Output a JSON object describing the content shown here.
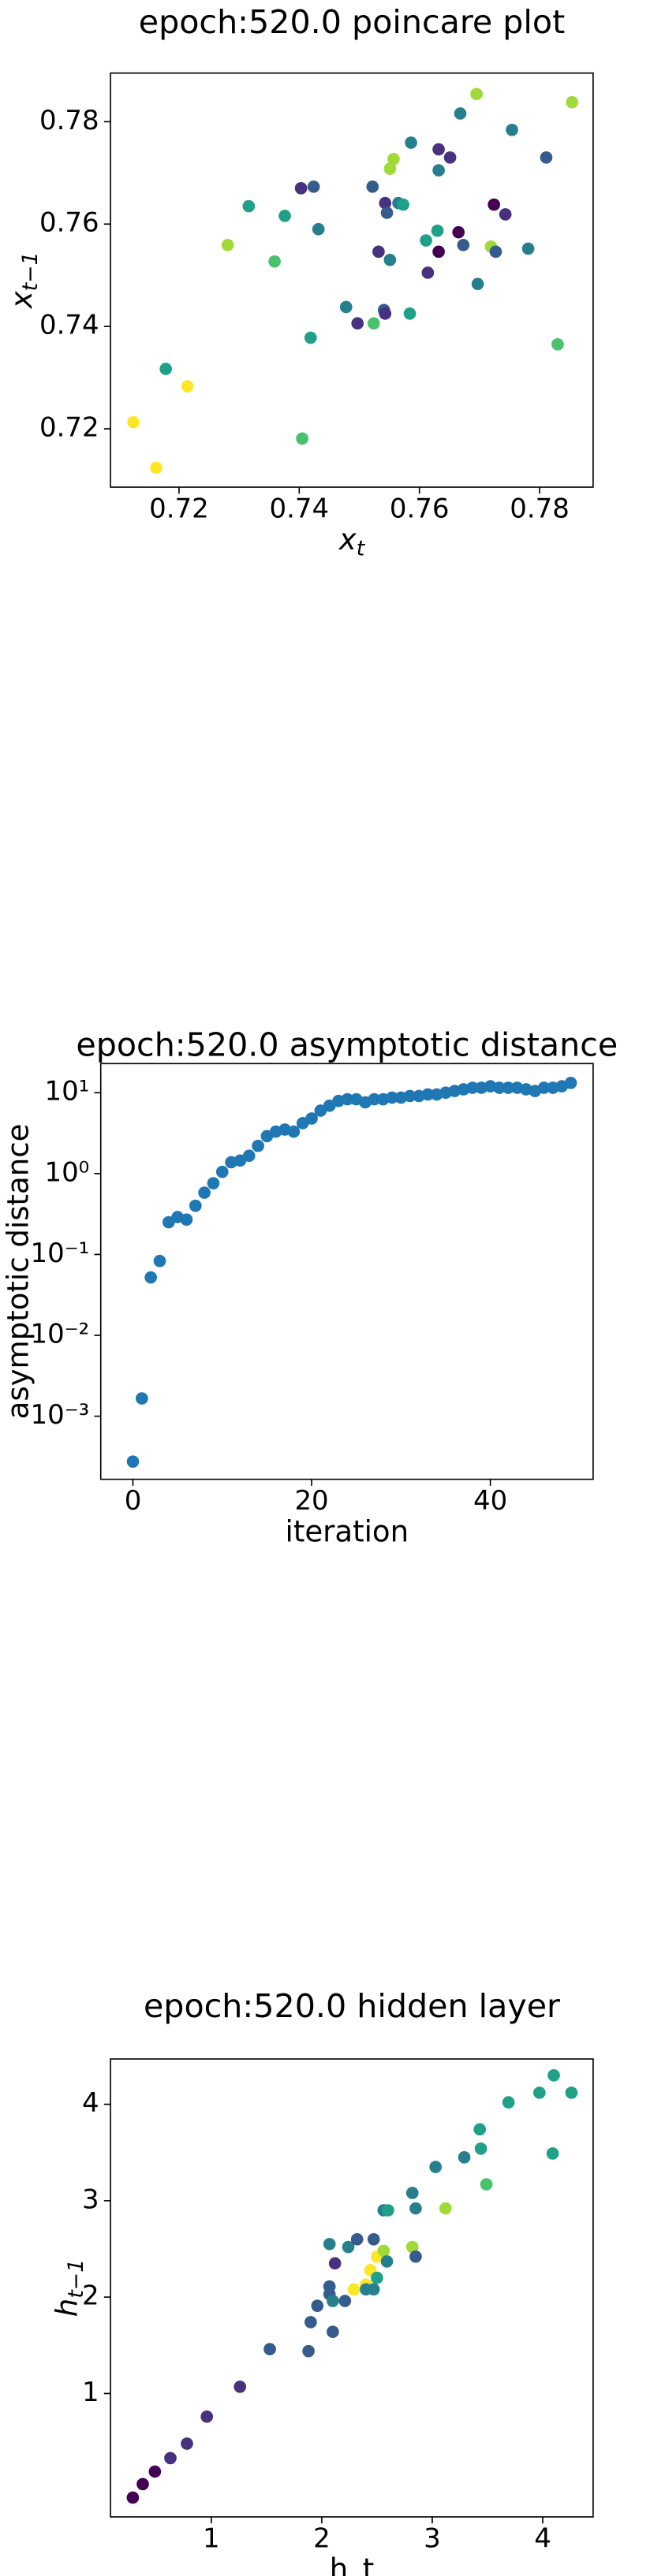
{
  "chart_data": [
    {
      "type": "scatter",
      "title": "epoch:520.0 poincare plot",
      "xlabel": "x",
      "xlabel_sub": "t",
      "ylabel": "x",
      "ylabel_sub": "t−1",
      "xlim": [
        0.7086,
        0.7889
      ],
      "ylim": [
        0.7086,
        0.7895
      ],
      "xticks": [
        0.72,
        0.74,
        0.76,
        0.78
      ],
      "yticks": [
        0.72,
        0.74,
        0.76,
        0.78
      ],
      "x": [
        0.7695,
        0.7854,
        0.7668,
        0.7754,
        0.7811,
        0.7586,
        0.7557,
        0.7551,
        0.7632,
        0.7651,
        0.7632,
        0.7403,
        0.7424,
        0.7522,
        0.7543,
        0.7565,
        0.7573,
        0.7724,
        0.7743,
        0.7316,
        0.7376,
        0.7432,
        0.7546,
        0.763,
        0.7665,
        0.7673,
        0.7611,
        0.7281,
        0.7532,
        0.7551,
        0.7632,
        0.7719,
        0.7727,
        0.7781,
        0.7359,
        0.7614,
        0.7697,
        0.7478,
        0.7541,
        0.7543,
        0.7584,
        0.7497,
        0.7524,
        0.7419,
        0.7178,
        0.7214,
        0.783,
        0.7124,
        0.7405,
        0.7162
      ],
      "series": [
        {
          "values": [
            0.7854,
            0.7838,
            0.7816,
            0.7784,
            0.773,
            0.7759,
            0.7727,
            0.7708,
            0.7746,
            0.773,
            0.7705,
            0.767,
            0.7673,
            0.7673,
            0.7641,
            0.7641,
            0.7638,
            0.7638,
            0.7619,
            0.7635,
            0.7616,
            0.759,
            0.7622,
            0.7587,
            0.7584,
            0.7559,
            0.7568,
            0.7559,
            0.7546,
            0.753,
            0.7546,
            0.7556,
            0.7546,
            0.7552,
            0.7527,
            0.7505,
            0.7483,
            0.7438,
            0.7432,
            0.7425,
            0.7425,
            0.7406,
            0.7406,
            0.7378,
            0.7317,
            0.7283,
            0.7365,
            0.7213,
            0.7181,
            0.7124
          ],
          "colors": [
            "#a0da39",
            "#a0da39",
            "#277f8e",
            "#277f8e",
            "#365c8d",
            "#277f8e",
            "#a0da39",
            "#a0da39",
            "#46327e",
            "#46327e",
            "#277f8e",
            "#46327e",
            "#365c8d",
            "#365c8d",
            "#46327e",
            "#277f8e",
            "#1fa187",
            "#440154",
            "#46327e",
            "#1fa187",
            "#1fa187",
            "#277f8e",
            "#365c8d",
            "#1fa187",
            "#440154",
            "#365c8d",
            "#1fa187",
            "#a0da39",
            "#46327e",
            "#277f8e",
            "#440154",
            "#a0da39",
            "#365c8d",
            "#277f8e",
            "#4ac16d",
            "#46327e",
            "#277f8e",
            "#277f8e",
            "#365c8d",
            "#46327e",
            "#1fa187",
            "#46327e",
            "#4ac16d",
            "#1fa187",
            "#1fa187",
            "#fde725",
            "#4ac16d",
            "#fde725",
            "#4ac16d",
            "#fde725"
          ]
        }
      ]
    },
    {
      "type": "scatter",
      "title": "epoch:520.0 asymptotic distance",
      "xlabel": "iteration",
      "ylabel": "asymptotic distance",
      "yscale": "log",
      "color": "#1f77b4",
      "xlim": [
        -3.6,
        51.5
      ],
      "ylim": [
        0.000166,
        22.9
      ],
      "xticks": [
        0,
        20,
        40
      ],
      "yticks": [
        {
          "value": 0.001,
          "label": "10⁻³"
        },
        {
          "value": 0.01,
          "label": "10⁻²"
        },
        {
          "value": 0.1,
          "label": "10⁻¹"
        },
        {
          "value": 1,
          "label": "10⁰"
        },
        {
          "value": 10,
          "label": "10¹"
        }
      ],
      "x": [
        0,
        1,
        2,
        3,
        4,
        5,
        6,
        7,
        8,
        9,
        10,
        11,
        12,
        13,
        14,
        15,
        16,
        17,
        18,
        19,
        20,
        21,
        22,
        23,
        24,
        25,
        26,
        27,
        28,
        29,
        30,
        31,
        32,
        33,
        34,
        35,
        36,
        37,
        38,
        39,
        40,
        41,
        42,
        43,
        44,
        45,
        46,
        47,
        48,
        49
      ],
      "series": [
        {
          "values": [
            0.000275,
            0.00166,
            0.052,
            0.083,
            0.25,
            0.29,
            0.27,
            0.4,
            0.58,
            0.76,
            1.05,
            1.38,
            1.45,
            1.66,
            2.2,
            2.9,
            3.3,
            3.5,
            3.3,
            4.2,
            4.8,
            6.0,
            6.9,
            7.9,
            8.3,
            8.3,
            7.6,
            8.3,
            8.3,
            8.7,
            8.7,
            9.1,
            9.1,
            9.5,
            9.5,
            10,
            10.5,
            11,
            11.5,
            11.5,
            12,
            11.5,
            11.5,
            11.5,
            11,
            10.5,
            11.5,
            11.5,
            12,
            13.2
          ]
        }
      ]
    },
    {
      "type": "scatter",
      "title": "epoch:520.0 hidden layer",
      "xlabel": "h_t",
      "ylabel": "h",
      "ylabel_sub": "t−1",
      "xlim": [
        0.088,
        4.456
      ],
      "ylim": [
        -0.28,
        4.47
      ],
      "xticks": [
        1,
        2,
        3,
        4
      ],
      "yticks": [
        1,
        2,
        3,
        4
      ],
      "x": [
        0.29,
        0.38,
        0.49,
        0.63,
        0.78,
        0.96,
        1.26,
        1.53,
        1.88,
        1.9,
        1.96,
        2.07,
        2.07,
        2.1,
        2.1,
        2.07,
        2.24,
        2.21,
        2.12,
        2.32,
        2.47,
        2.4,
        2.29,
        2.44,
        2.5,
        2.56,
        2.5,
        2.59,
        2.47,
        2.4,
        2.56,
        2.6,
        2.82,
        2.85,
        2.85,
        2.82,
        3.03,
        3.12,
        3.29,
        3.43,
        3.44,
        3.49,
        3.69,
        3.97,
        4.1,
        4.09,
        4.26
      ],
      "series": [
        {
          "values": [
            -0.08,
            0.06,
            0.19,
            0.33,
            0.48,
            0.76,
            1.07,
            1.46,
            1.44,
            1.74,
            1.91,
            2.03,
            2.11,
            1.96,
            1.64,
            2.55,
            2.52,
            1.96,
            2.35,
            2.6,
            2.6,
            2.13,
            2.08,
            2.28,
            2.42,
            2.48,
            2.2,
            2.37,
            2.08,
            2.08,
            2.9,
            2.9,
            2.52,
            2.42,
            2.92,
            3.08,
            3.35,
            2.92,
            3.45,
            3.74,
            3.54,
            3.17,
            4.02,
            4.12,
            4.3,
            3.49,
            4.12
          ],
          "colors": [
            "#440154",
            "#440154",
            "#440154",
            "#46327e",
            "#46327e",
            "#46327e",
            "#46327e",
            "#365c8d",
            "#365c8d",
            "#365c8d",
            "#365c8d",
            "#365c8d",
            "#365c8d",
            "#277f8e",
            "#365c8d",
            "#277f8e",
            "#277f8e",
            "#365c8d",
            "#46327e",
            "#365c8d",
            "#365c8d",
            "#fde725",
            "#fde725",
            "#fde725",
            "#fde725",
            "#a0da39",
            "#1fa187",
            "#277f8e",
            "#277f8e",
            "#277f8e",
            "#277f8e",
            "#1fa187",
            "#a0da39",
            "#365c8d",
            "#277f8e",
            "#277f8e",
            "#277f8e",
            "#a0da39",
            "#277f8e",
            "#1fa187",
            "#1fa187",
            "#4ac16d",
            "#1fa187",
            "#1fa187",
            "#1fa187",
            "#1fa187",
            "#1fa187"
          ]
        }
      ]
    }
  ]
}
